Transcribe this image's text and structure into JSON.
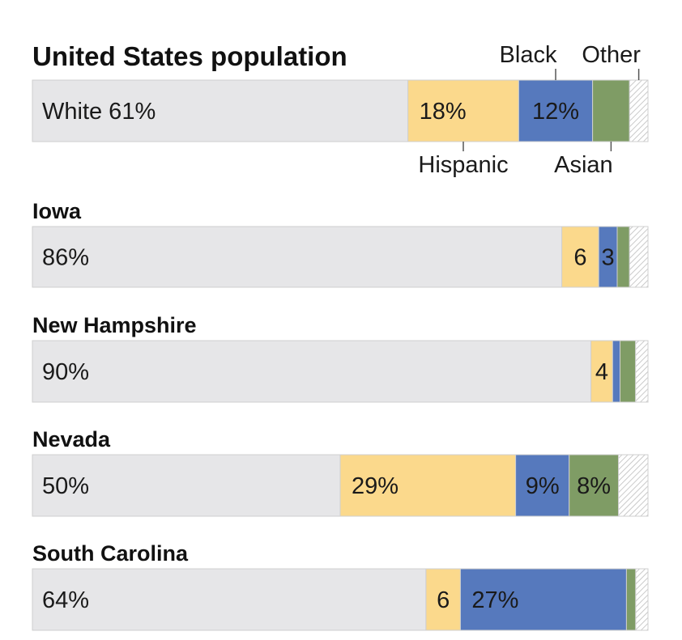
{
  "chart_data": {
    "type": "bar",
    "orientation": "horizontal-stacked-100",
    "title": "United States population",
    "series_names": [
      "White",
      "Hispanic",
      "Black",
      "Asian",
      "Other"
    ],
    "colors": {
      "White": "#e6e6e8",
      "Hispanic": "#fbd98c",
      "Black": "#5679bd",
      "Asian": "#7f9c65",
      "Other": "hatch"
    },
    "category_annotations": {
      "Black": "Black",
      "Other": "Other",
      "Hispanic": "Hispanic",
      "Asian": "Asian"
    },
    "rows": [
      {
        "name": "United States population",
        "values": [
          61,
          18,
          12,
          6,
          3
        ],
        "labels": [
          "White 61%",
          "18%",
          "12%",
          "",
          ""
        ]
      },
      {
        "name": "Iowa",
        "values": [
          86,
          6,
          3,
          2,
          3
        ],
        "labels": [
          "86%",
          "6",
          "3",
          "",
          ""
        ]
      },
      {
        "name": "New Hampshire",
        "values": [
          90,
          3.5,
          1.2,
          2.5,
          2
        ],
        "labels": [
          "90%",
          "4",
          "",
          "",
          ""
        ]
      },
      {
        "name": "Nevada",
        "values": [
          50,
          28.5,
          8.7,
          8,
          4.8
        ],
        "labels": [
          "50%",
          "29%",
          "9%",
          "8%",
          ""
        ]
      },
      {
        "name": "South Carolina",
        "values": [
          64,
          5.6,
          27,
          1.5,
          2
        ],
        "labels": [
          "64%",
          "6",
          "27%",
          "",
          ""
        ]
      }
    ],
    "xlim": [
      0,
      100
    ]
  }
}
